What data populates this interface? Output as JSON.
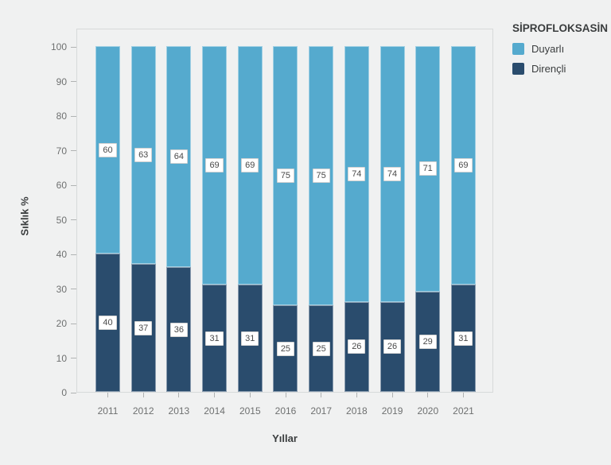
{
  "chart_data": {
    "type": "bar",
    "stacked": true,
    "title": "SİPROFLOKSASİN",
    "categories": [
      "2011",
      "2012",
      "2013",
      "2014",
      "2015",
      "2016",
      "2017",
      "2018",
      "2019",
      "2020",
      "2021"
    ],
    "series": [
      {
        "name": "Duyarlı",
        "color": "#55aace",
        "values": [
          60,
          63,
          64,
          69,
          69,
          75,
          75,
          74,
          74,
          71,
          69
        ]
      },
      {
        "name": "Dirençli",
        "color": "#2a4c6d",
        "values": [
          40,
          37,
          36,
          31,
          31,
          25,
          25,
          26,
          26,
          29,
          31
        ]
      }
    ],
    "xlabel": "Yıllar",
    "ylabel": "Sıklık %",
    "ylim": [
      0,
      100
    ],
    "yticks": [
      0,
      10,
      20,
      30,
      40,
      50,
      60,
      70,
      80,
      90,
      100
    ],
    "grid": false,
    "legend_position": "top-right",
    "value_labels": true
  }
}
